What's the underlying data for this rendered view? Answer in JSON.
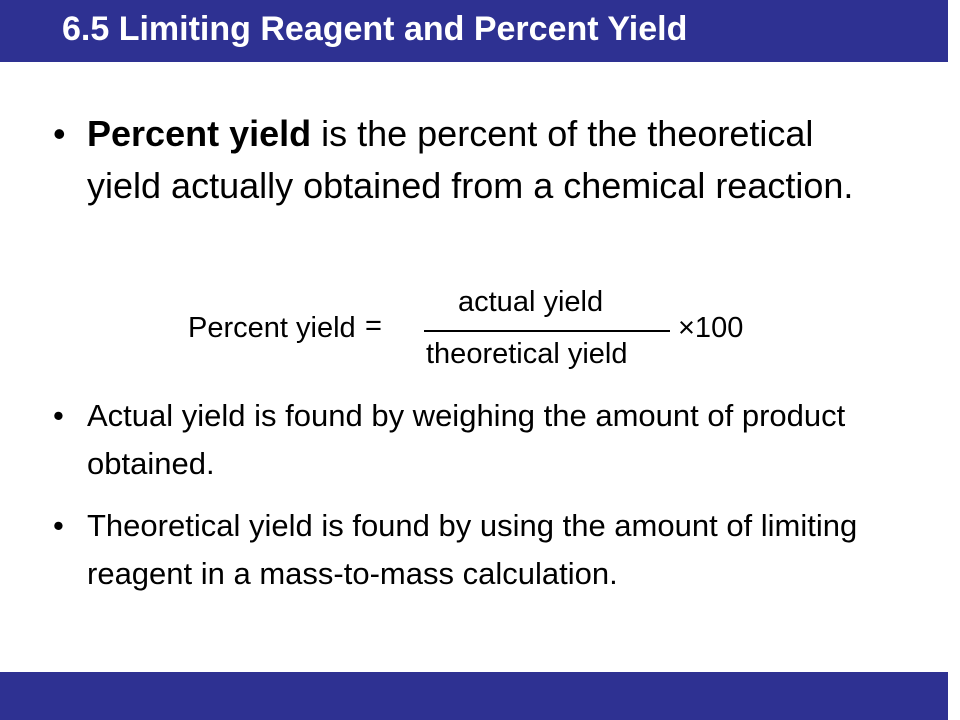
{
  "header": {
    "title": "6.5 Limiting Reagent and Percent Yield"
  },
  "bullets": [
    {
      "bold": "Percent yield",
      "text": " is the percent of the theoretical yield actually obtained from a chemical reaction."
    },
    {
      "text": "Actual yield is found by weighing the amount of product obtained."
    },
    {
      "text": "Theoretical yield is found by using the amount of limiting reagent in a mass-to-mass calculation."
    }
  ],
  "formula": {
    "lhs": "Percent yield",
    "equals": "=",
    "numerator": "actual yield",
    "denominator": "theoretical yield",
    "factor": "×100"
  }
}
